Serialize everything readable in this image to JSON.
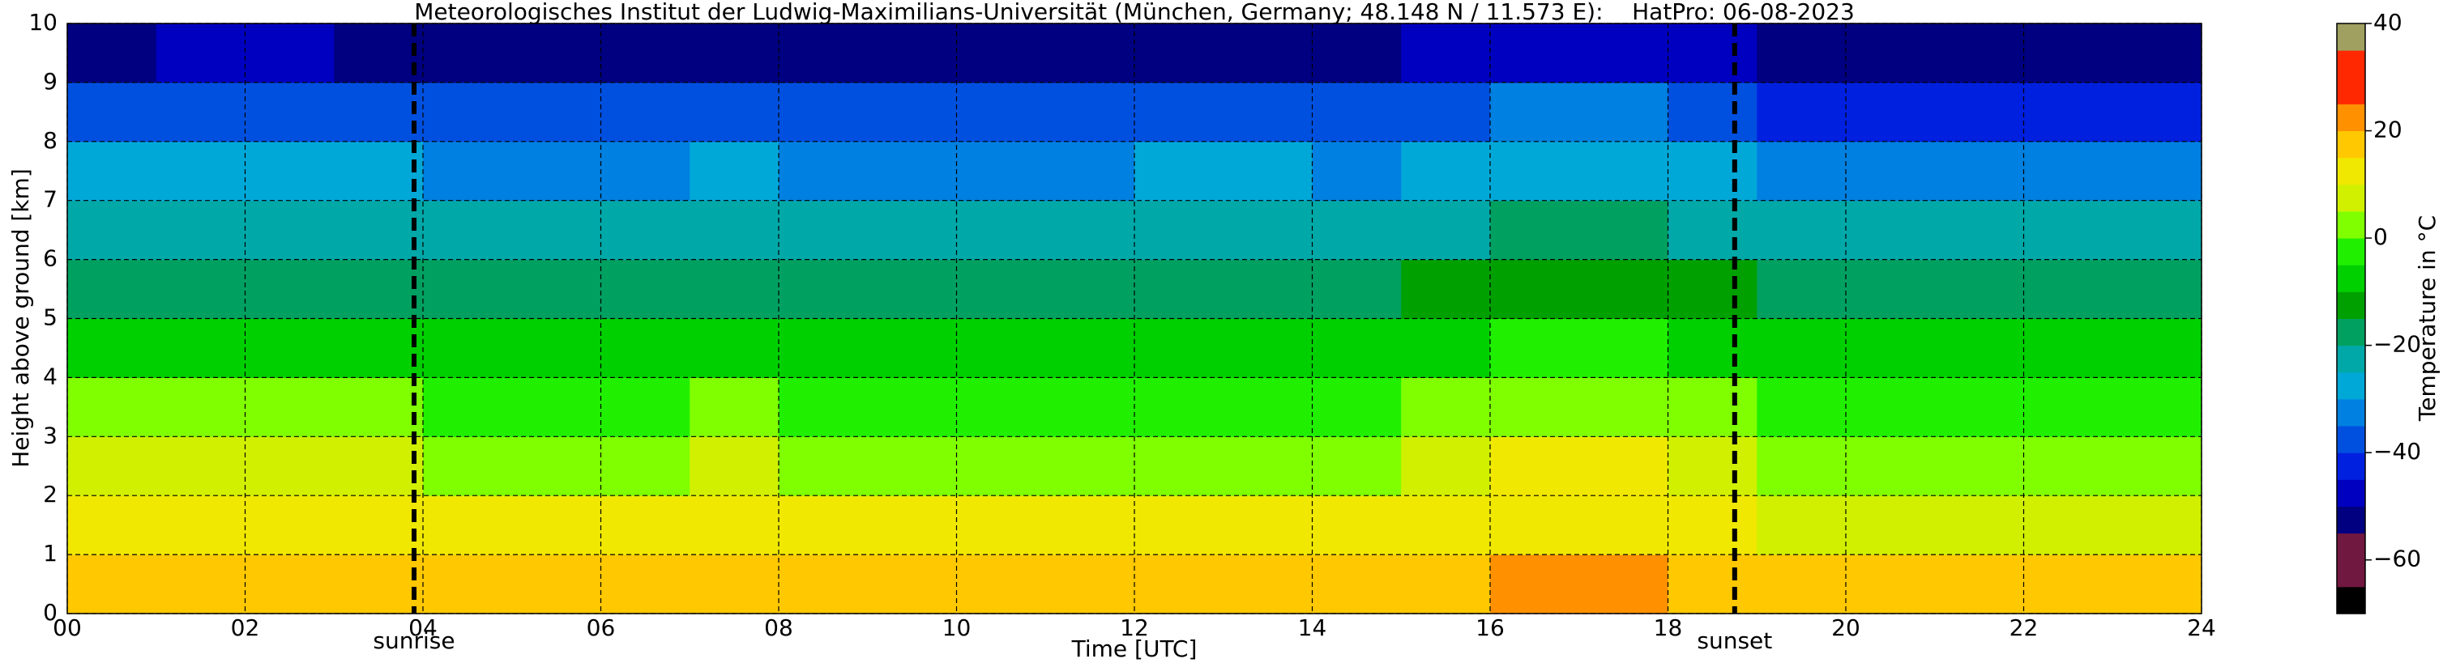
{
  "chart_data": {
    "type": "heatmap",
    "title": "Meteorologisches Institut der Ludwig-Maximilians-Universität (München, Germany; 48.148 N / 11.573 E):    HatPro: 06-08-2023",
    "xlabel": "Time [UTC]",
    "ylabel": "Height above ground [km]",
    "colorbar_label": "Temperature in °C",
    "xlim": [
      0,
      24
    ],
    "ylim": [
      0,
      10
    ],
    "xticks": [
      {
        "value": 0,
        "label": "00"
      },
      {
        "value": 2,
        "label": "02"
      },
      {
        "value": 4,
        "label": "04"
      },
      {
        "value": 6,
        "label": "06"
      },
      {
        "value": 8,
        "label": "08"
      },
      {
        "value": 10,
        "label": "10"
      },
      {
        "value": 12,
        "label": "12"
      },
      {
        "value": 14,
        "label": "14"
      },
      {
        "value": 16,
        "label": "16"
      },
      {
        "value": 18,
        "label": "18"
      },
      {
        "value": 20,
        "label": "20"
      },
      {
        "value": 22,
        "label": "22"
      },
      {
        "value": 24,
        "label": "24"
      }
    ],
    "yticks": [
      0,
      1,
      2,
      3,
      4,
      5,
      6,
      7,
      8,
      9,
      10
    ],
    "grid": true,
    "x": [
      0.5,
      1.5,
      2.5,
      3.5,
      4.5,
      5.5,
      6.5,
      7.5,
      8.5,
      9.5,
      10.5,
      11.5,
      12.5,
      13.5,
      14.5,
      15.5,
      16.5,
      17.5,
      18.5,
      19.5,
      20.5,
      21.5,
      22.5,
      23.5
    ],
    "y": [
      0.5,
      1.5,
      2.5,
      3.5,
      4.5,
      5.5,
      6.5,
      7.5,
      8.5,
      9.5
    ],
    "z": [
      [
        15,
        15,
        16,
        15,
        15,
        15,
        15,
        16,
        15,
        15,
        15,
        15,
        15,
        15,
        15,
        15,
        24,
        24,
        17,
        15,
        15,
        15,
        15,
        15
      ],
      [
        10,
        10,
        11,
        10,
        10,
        10,
        10,
        10,
        10,
        10,
        10,
        10,
        10,
        10,
        10,
        12,
        14,
        14,
        11,
        9,
        9,
        9,
        9,
        9
      ],
      [
        6,
        6,
        7,
        6,
        5,
        5,
        5,
        6,
        5,
        5,
        5,
        5,
        5,
        5,
        5,
        7,
        10,
        10,
        7,
        5,
        5,
        5,
        5,
        5
      ],
      [
        0,
        0,
        1,
        0,
        -1,
        -1,
        -1,
        0,
        -1,
        -1,
        -1,
        -1,
        -1,
        -1,
        -1,
        1,
        5,
        5,
        1,
        -1,
        -1,
        -1,
        -1,
        -1
      ],
      [
        -8,
        -8,
        -7,
        -8,
        -9,
        -9,
        -9,
        -8,
        -9,
        -9,
        -9,
        -9,
        -9,
        -9,
        -9,
        -6,
        -3,
        -3,
        -6,
        -9,
        -9,
        -9,
        -9,
        -9
      ],
      [
        -17,
        -17,
        -16,
        -17,
        -17,
        -17,
        -17,
        -16,
        -17,
        -17,
        -17,
        -17,
        -16,
        -16,
        -17,
        -14,
        -13,
        -13,
        -15,
        -17,
        -17,
        -17,
        -17,
        -17
      ],
      [
        -24,
        -23,
        -21,
        -23,
        -25,
        -25,
        -25,
        -23,
        -25,
        -25,
        -25,
        -25,
        -24,
        -24,
        -25,
        -22,
        -19,
        -19,
        -22,
        -25,
        -25,
        -25,
        -25,
        -25
      ],
      [
        -30,
        -30,
        -29,
        -30,
        -31,
        -31,
        -31,
        -29,
        -31,
        -31,
        -31,
        -31,
        -30,
        -30,
        -31,
        -28,
        -27,
        -27,
        -29,
        -31,
        -31,
        -31,
        -31,
        -31
      ],
      [
        -38,
        -37,
        -36,
        -37,
        -40,
        -40,
        -40,
        -37,
        -40,
        -40,
        -40,
        -40,
        -39,
        -39,
        -40,
        -36,
        -34,
        -34,
        -37,
        -41,
        -41,
        -41,
        -41,
        -41
      ],
      [
        -52,
        -50,
        -50,
        -51,
        -53,
        -53,
        -53,
        -51,
        -53,
        -53,
        -53,
        -53,
        -52,
        -52,
        -53,
        -48,
        -46,
        -46,
        -50,
        -53,
        -53,
        -53,
        -53,
        -53
      ]
    ],
    "clim": [
      -70,
      40
    ],
    "colors": [
      "#000000",
      "#701840",
      "#701840",
      "#000080",
      "#0000c0",
      "#0020e0",
      "#0050e0",
      "#0080e0",
      "#00a8d8",
      "#00a8a8",
      "#00a060",
      "#00a000",
      "#00d000",
      "#20f000",
      "#80ff00",
      "#d0f000",
      "#f0e800",
      "#ffc800",
      "#ff9000",
      "#ff2800",
      "#ff2800",
      "#a0a060"
    ],
    "colorbar_ticks": [
      {
        "value": 40,
        "label": "40"
      },
      {
        "value": 20,
        "label": "20"
      },
      {
        "value": 0,
        "label": "0"
      },
      {
        "value": -20,
        "label": "−20"
      },
      {
        "value": -40,
        "label": "−40"
      },
      {
        "value": -60,
        "label": "−60"
      }
    ],
    "annotations": [
      {
        "text": "sunrise",
        "x": 3.9
      },
      {
        "text": "sunset",
        "x": 18.75
      }
    ]
  }
}
